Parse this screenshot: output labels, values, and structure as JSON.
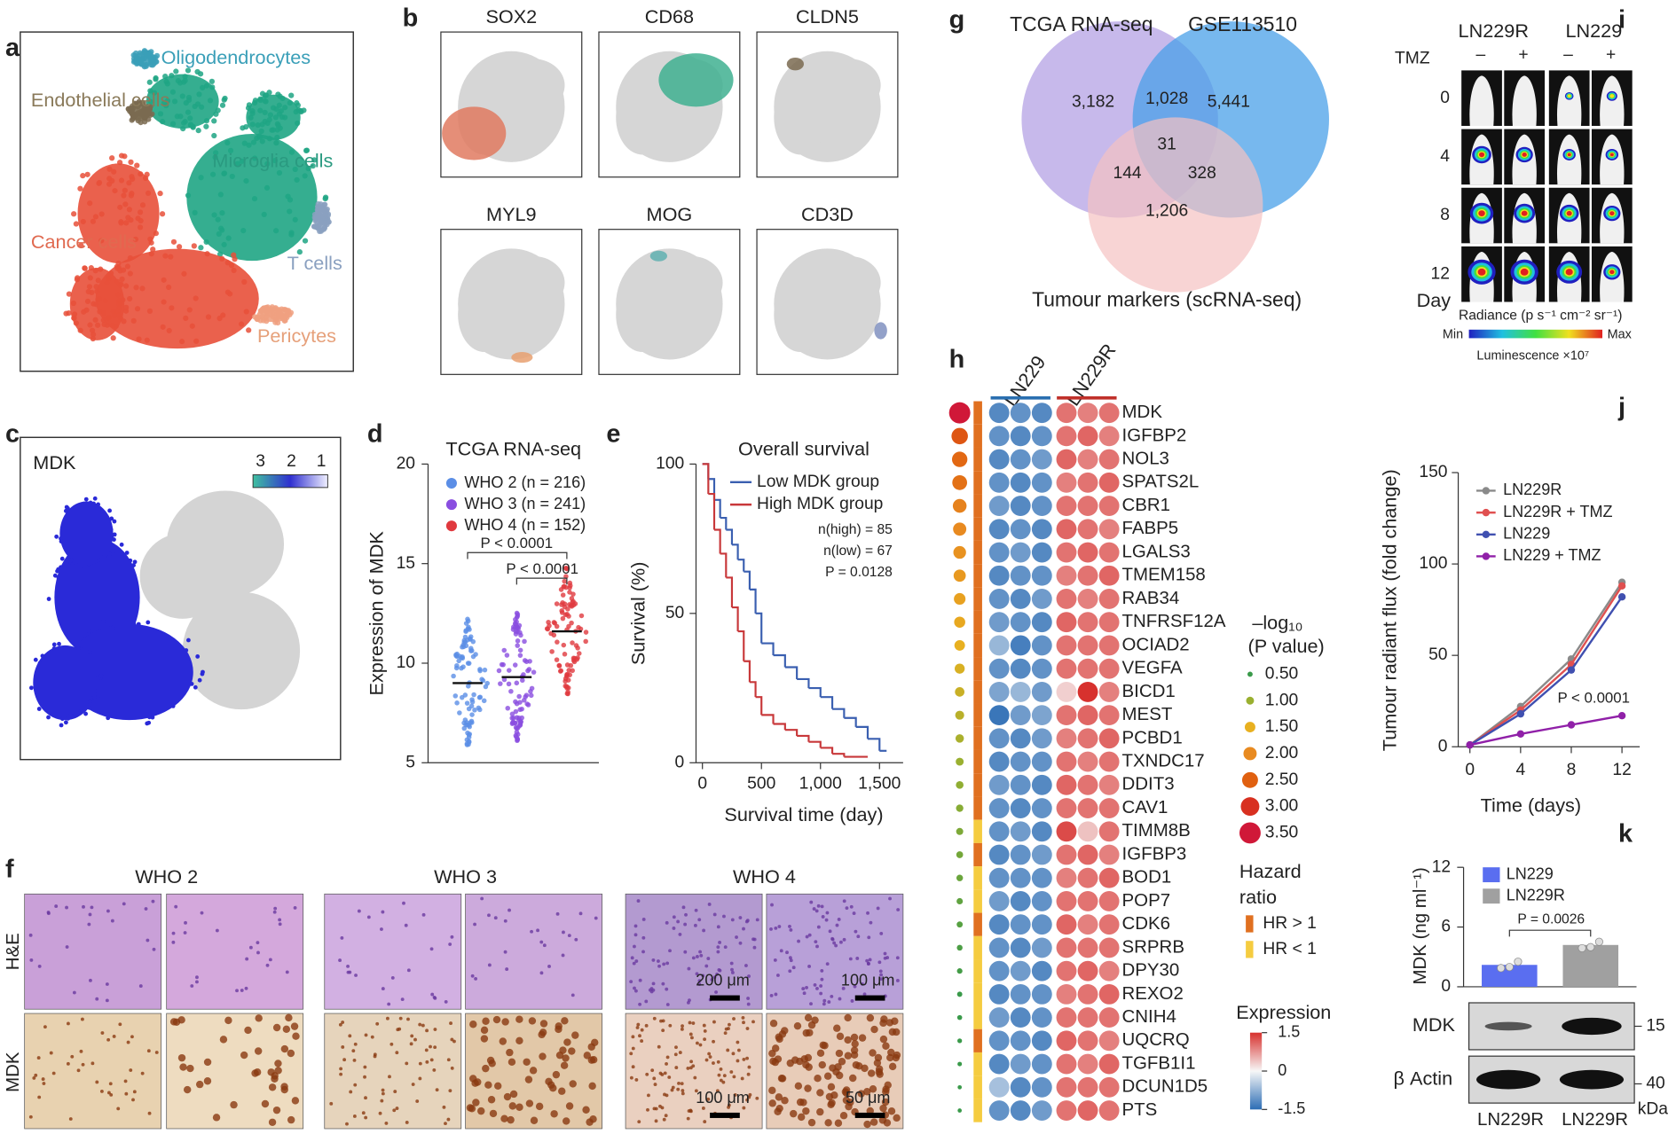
{
  "panel_letters": [
    "a",
    "b",
    "c",
    "d",
    "e",
    "f",
    "g",
    "h",
    "i",
    "j",
    "k"
  ],
  "a": {
    "labels": [
      "Oligodendrocytes",
      "Endothelial cells",
      "Microglia cells",
      "Cancer cells",
      "T cells",
      "Pericytes"
    ],
    "label_colors": [
      "#3a9fb8",
      "#8a7a5a",
      "#2a9a80",
      "#e06a50",
      "#8aa0c0",
      "#e6a07a"
    ]
  },
  "b": {
    "genes": [
      "SOX2",
      "CD68",
      "CLDN5",
      "MYL9",
      "MOG",
      "CD3D"
    ]
  },
  "c": {
    "gene": "MDK",
    "colorbar_ticks": [
      3,
      2,
      1
    ]
  },
  "d": {
    "type": "beeswarm",
    "title": "TCGA RNA-seq",
    "ylabel": "Expression of MDK",
    "ylim": [
      5,
      20
    ],
    "yticks": [
      5,
      10,
      15,
      20
    ],
    "series": [
      {
        "name": "WHO 2 (n = 216)",
        "color": "#5b8ee6",
        "median": 9.0
      },
      {
        "name": "WHO 3 (n = 241)",
        "color": "#8a4ee0",
        "median": 9.3
      },
      {
        "name": "WHO 4 (n = 152)",
        "color": "#e0393e",
        "median": 11.6
      }
    ],
    "annotations": [
      "P < 0.0001",
      "P < 0.0001"
    ]
  },
  "e": {
    "type": "line",
    "title": "Overall survival",
    "xlabel": "Survival time (day)",
    "ylabel": "Survival (%)",
    "xlim": [
      0,
      1700
    ],
    "ylim": [
      0,
      100
    ],
    "xticks": [
      0,
      500,
      {
        "value": 1000,
        "label": "1,000"
      },
      {
        "value": 1500,
        "label": "1,500"
      }
    ],
    "yticks": [
      0,
      50,
      100
    ],
    "series": [
      {
        "name": "Low MDK group",
        "color": "#3a5fb0",
        "x": [
          0,
          50,
          100,
          150,
          200,
          250,
          300,
          350,
          400,
          450,
          500,
          600,
          700,
          800,
          900,
          1000,
          1100,
          1200,
          1300,
          1400,
          1500,
          1560
        ],
        "values": [
          100,
          95,
          88,
          82,
          78,
          73,
          68,
          64,
          58,
          50,
          40,
          36,
          32,
          28,
          25,
          22,
          18,
          15,
          12,
          8,
          4,
          4
        ]
      },
      {
        "name": "High MDK group",
        "color": "#c8383a",
        "x": [
          0,
          50,
          100,
          150,
          200,
          250,
          300,
          350,
          400,
          450,
          500,
          600,
          700,
          800,
          900,
          1000,
          1100,
          1200,
          1400
        ],
        "values": [
          100,
          90,
          78,
          70,
          62,
          52,
          44,
          34,
          27,
          22,
          16,
          13,
          11,
          9,
          7,
          5,
          3,
          2,
          2
        ]
      }
    ],
    "annotations": [
      "n(high) = 85",
      "n(low) = 67",
      "P = 0.0128"
    ]
  },
  "f": {
    "columns": [
      "WHO 2",
      "WHO 3",
      "WHO 4"
    ],
    "rows": [
      "H&E",
      "MDK"
    ],
    "scale_bars": [
      "200 μm",
      "100 μm",
      "100 μm",
      "50 μm"
    ]
  },
  "g": {
    "sets": [
      "TCGA RNA-seq",
      "GSE113510",
      "Tumour markers (scRNA-seq)"
    ],
    "counts": [
      "3,182",
      "1,028",
      "5,441",
      "31",
      "144",
      "328",
      "1,206"
    ]
  },
  "h": {
    "groups": [
      {
        "name": "LN229",
        "color": "#2a6fb0"
      },
      {
        "name": "LN229R",
        "color": "#c0302a"
      }
    ],
    "genes": [
      "MDK",
      "IGFBP2",
      "NOL3",
      "SPATS2L",
      "CBR1",
      "FABP5",
      "LGALS3",
      "TMEM158",
      "RAB34",
      "TNFRSF12A",
      "OCIAD2",
      "VEGFA",
      "BICD1",
      "MEST",
      "PCBD1",
      "TXNDC17",
      "DDIT3",
      "CAV1",
      "TIMM8B",
      "IGFBP3",
      "BOD1",
      "POP7",
      "CDK6",
      "SRPRB",
      "DPY30",
      "REXO2",
      "CNIH4",
      "UQCRQ",
      "TGFB1I1",
      "DCUN1D5",
      "PTS"
    ],
    "expression": [
      [
        -1.2,
        -1.1,
        -1.2,
        1.0,
        0.9,
        1.0
      ],
      [
        -1.1,
        -1.2,
        -1.1,
        1.0,
        1.1,
        0.9
      ],
      [
        -1.2,
        -1.1,
        -1.0,
        1.1,
        0.9,
        1.0
      ],
      [
        -1.1,
        -1.2,
        -1.1,
        0.9,
        1.0,
        1.1
      ],
      [
        -1.0,
        -1.2,
        -1.1,
        1.0,
        1.0,
        1.0
      ],
      [
        -1.2,
        -1.1,
        -1.2,
        1.1,
        1.0,
        0.9
      ],
      [
        -1.1,
        -1.0,
        -1.2,
        1.0,
        1.1,
        1.0
      ],
      [
        -1.2,
        -1.1,
        -1.1,
        0.9,
        1.0,
        1.1
      ],
      [
        -1.1,
        -1.2,
        -1.0,
        1.0,
        0.9,
        1.0
      ],
      [
        -1.0,
        -1.1,
        -1.2,
        1.1,
        1.0,
        1.0
      ],
      [
        -0.7,
        -1.3,
        -1.1,
        1.0,
        1.0,
        1.0
      ],
      [
        -1.1,
        -1.2,
        -1.1,
        1.0,
        1.0,
        1.0
      ],
      [
        -0.9,
        -0.7,
        -1.0,
        0.3,
        1.5,
        0.9
      ],
      [
        -1.4,
        -1.0,
        -0.9,
        1.0,
        1.1,
        1.0
      ],
      [
        -1.1,
        -1.2,
        -1.0,
        0.9,
        1.0,
        1.1
      ],
      [
        -1.2,
        -1.1,
        -1.1,
        1.0,
        0.9,
        1.0
      ],
      [
        -1.0,
        -1.1,
        -1.2,
        1.1,
        1.0,
        0.9
      ],
      [
        -1.1,
        -1.2,
        -1.1,
        1.0,
        1.0,
        1.0
      ],
      [
        -1.1,
        -1.0,
        -1.2,
        1.3,
        0.4,
        1.0
      ],
      [
        -1.2,
        -1.1,
        -1.0,
        1.0,
        1.1,
        0.9
      ],
      [
        -1.1,
        -1.1,
        -1.1,
        0.9,
        1.0,
        1.1
      ],
      [
        -1.0,
        -1.2,
        -1.1,
        1.0,
        1.0,
        1.0
      ],
      [
        -1.2,
        -1.1,
        -1.1,
        1.1,
        0.9,
        1.0
      ],
      [
        -1.1,
        -1.2,
        -1.0,
        1.0,
        1.0,
        1.0
      ],
      [
        -1.1,
        -1.0,
        -1.2,
        1.0,
        1.1,
        0.9
      ],
      [
        -1.2,
        -1.1,
        -1.1,
        0.9,
        1.0,
        1.1
      ],
      [
        -1.0,
        -1.2,
        -1.1,
        1.0,
        1.0,
        1.0
      ],
      [
        -1.1,
        -1.1,
        -1.2,
        1.1,
        1.0,
        0.9
      ],
      [
        -1.2,
        -1.0,
        -1.1,
        1.0,
        0.9,
        1.1
      ],
      [
        -0.6,
        -1.2,
        -1.1,
        1.0,
        1.0,
        1.0
      ],
      [
        -1.1,
        -1.2,
        -1.0,
        1.0,
        1.1,
        1.0
      ]
    ],
    "neg_log10_p": [
      3.5,
      2.6,
      2.4,
      2.3,
      2.1,
      2.0,
      1.9,
      1.8,
      1.7,
      1.6,
      1.5,
      1.4,
      1.3,
      1.2,
      1.1,
      1.0,
      0.95,
      0.9,
      0.85,
      0.8,
      0.75,
      0.7,
      0.65,
      0.6,
      0.55,
      0.5,
      0.45,
      0.4,
      0.35,
      0.3,
      0.3
    ],
    "hr_above_1": [
      true,
      true,
      true,
      true,
      true,
      true,
      true,
      true,
      true,
      true,
      true,
      true,
      true,
      true,
      true,
      true,
      true,
      true,
      false,
      true,
      false,
      false,
      true,
      false,
      false,
      false,
      false,
      true,
      false,
      false,
      false
    ],
    "p_legend": {
      "title": "–log₁₀",
      "subtitle": "(P value)",
      "values": [
        0.5,
        1.0,
        1.5,
        2.0,
        2.5,
        3.0,
        3.5
      ],
      "value_labels": [
        "0.50",
        "1.00",
        "1.50",
        "2.00",
        "2.50",
        "3.00",
        "3.50"
      ],
      "colors": [
        "#3a9a4a",
        "#9ab030",
        "#e8b020",
        "#e88a20",
        "#e06010",
        "#d83020",
        "#d01838"
      ]
    },
    "hr_legend": {
      "title": [
        "Hazard",
        "ratio"
      ],
      "labels": [
        "HR > 1",
        "HR < 1"
      ],
      "colors": [
        "#e07020",
        "#f5cc40"
      ]
    },
    "expression_legend": {
      "title": "Expression",
      "ticks": [
        1.5,
        0,
        -1.5
      ],
      "lim": [
        -1.5,
        1.5
      ]
    }
  },
  "i": {
    "groups": [
      "LN229R",
      "LN229"
    ],
    "treatment": "TMZ",
    "treatment_states": [
      "–",
      "+",
      "–",
      "+"
    ],
    "days": [
      0,
      4,
      8,
      12
    ],
    "day_label": "Day",
    "radiance_label": "Radiance (p s⁻¹ cm⁻² sr⁻¹)",
    "min_label": "Min",
    "max_label": "Max",
    "scale_label": "Luminescence ×10⁷"
  },
  "j": {
    "type": "line",
    "xlabel": "Time (days)",
    "ylabel": "Tumour radiant flux (fold change)",
    "xlim": [
      -0.5,
      13.4
    ],
    "ylim": [
      0,
      150
    ],
    "xticks": [
      0,
      4,
      8,
      12
    ],
    "yticks": [
      0,
      50,
      100,
      150
    ],
    "series": [
      {
        "name": "LN229R",
        "color": "#8a8a8a",
        "x": [
          0,
          4,
          8,
          12
        ],
        "values": [
          1,
          22,
          48,
          90
        ]
      },
      {
        "name": "LN229R + TMZ",
        "color": "#e05050",
        "x": [
          0,
          4,
          8,
          12
        ],
        "values": [
          1,
          20,
          45,
          88
        ]
      },
      {
        "name": "LN229",
        "color": "#4050b0",
        "x": [
          0,
          4,
          8,
          12
        ],
        "values": [
          1,
          18,
          42,
          82
        ]
      },
      {
        "name": "LN229 + TMZ",
        "color": "#9020a8",
        "x": [
          0,
          4,
          8,
          12
        ],
        "values": [
          1,
          7,
          12,
          17
        ]
      }
    ],
    "annotation": "P < 0.0001"
  },
  "k": {
    "type": "bar",
    "ylabel": "MDK (ng ml⁻¹)",
    "ylim": [
      0,
      12
    ],
    "yticks": [
      0,
      6,
      12
    ],
    "series": [
      {
        "name": "LN229",
        "color": "#5a6ef0",
        "value": 2.2
      },
      {
        "name": "LN229R",
        "color": "#a0a0a0",
        "value": 4.2
      }
    ],
    "annotation": "P = 0.0026",
    "blot": {
      "rows": [
        "MDK",
        "β Actin"
      ],
      "markers": [
        15,
        40
      ],
      "marker_unit": "kDa",
      "lanes": [
        "LN229R",
        "LN229R"
      ]
    }
  }
}
